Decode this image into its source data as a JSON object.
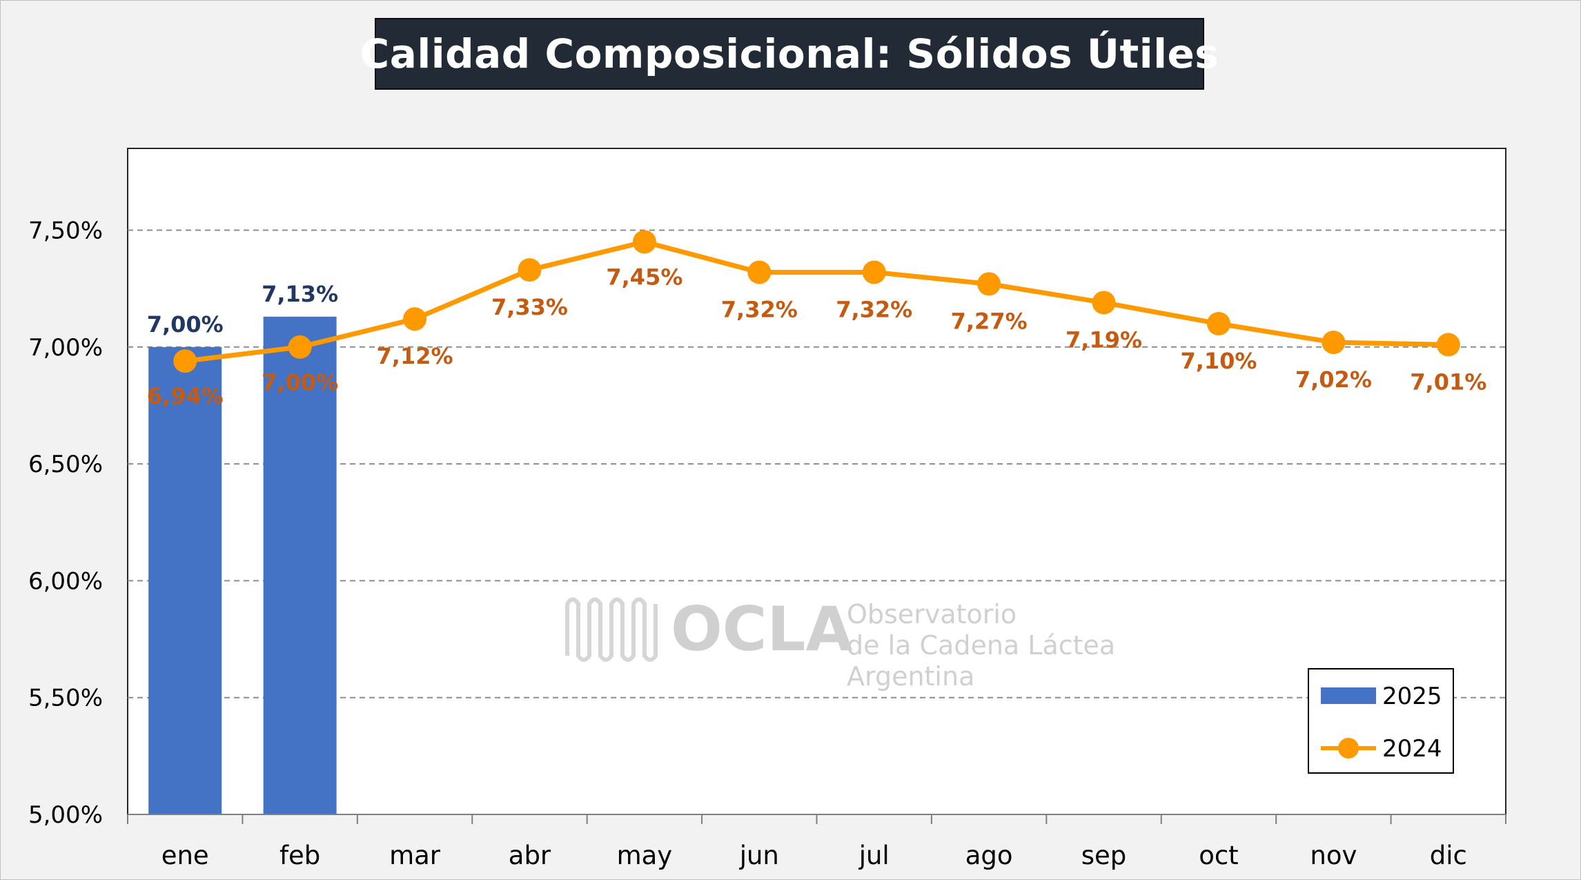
{
  "title": "Calidad Composicional: Sólidos Útiles",
  "watermark": {
    "brand": "OCLA",
    "line1": "Observatorio",
    "line2": "de la Cadena Láctea",
    "line3": "Argentina"
  },
  "chart_data": {
    "type": "bar",
    "title": "Calidad Composicional: Sólidos Útiles",
    "categories": [
      "ene",
      "feb",
      "mar",
      "abr",
      "may",
      "jun",
      "jul",
      "ago",
      "sep",
      "oct",
      "nov",
      "dic"
    ],
    "ylim": [
      5.0,
      7.85
    ],
    "yticks": [
      5.0,
      5.5,
      6.0,
      6.5,
      7.0,
      7.5
    ],
    "ytick_labels": [
      "5,00%",
      "5,50%",
      "6,00%",
      "6,50%",
      "7,00%",
      "7,50%"
    ],
    "grid": true,
    "legend_position": "bottom-right",
    "series": [
      {
        "name": "2025",
        "type": "bar",
        "color": "#4472c4",
        "values": [
          7.0,
          7.13,
          null,
          null,
          null,
          null,
          null,
          null,
          null,
          null,
          null,
          null
        ],
        "labels": [
          "7,00%",
          "7,13%",
          "",
          "",
          "",
          "",
          "",
          "",
          "",
          "",
          "",
          ""
        ]
      },
      {
        "name": "2024",
        "type": "line",
        "color": "#ff9900",
        "values": [
          6.94,
          7.0,
          7.12,
          7.33,
          7.45,
          7.32,
          7.32,
          7.27,
          7.19,
          7.1,
          7.02,
          7.01
        ],
        "labels": [
          "6,94%",
          "7,00%",
          "7,12%",
          "7,33%",
          "7,45%",
          "7,32%",
          "7,32%",
          "7,27%",
          "7,19%",
          "7,10%",
          "7,02%",
          "7,01%"
        ]
      }
    ]
  }
}
